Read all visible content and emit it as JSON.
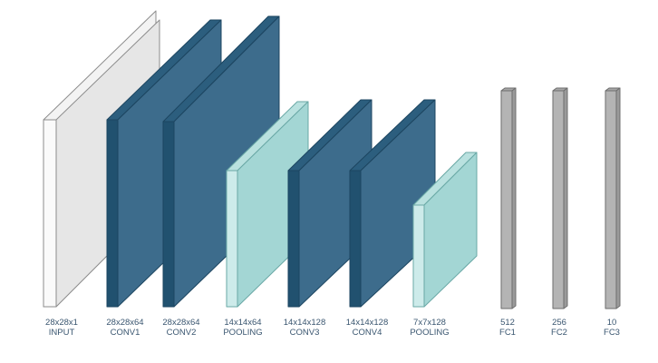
{
  "layers": [
    {
      "dims": "28x28x1",
      "name": "INPUT",
      "kind": "input"
    },
    {
      "dims": "28x28x64",
      "name": "CONV1",
      "kind": "conv"
    },
    {
      "dims": "28x28x64",
      "name": "CONV2",
      "kind": "conv"
    },
    {
      "dims": "14x14x64",
      "name": "POOLING",
      "kind": "pool"
    },
    {
      "dims": "14x14x128",
      "name": "CONV3",
      "kind": "conv"
    },
    {
      "dims": "14x14x128",
      "name": "CONV4",
      "kind": "conv"
    },
    {
      "dims": "7x7x128",
      "name": "POOLING",
      "kind": "pool"
    },
    {
      "dims": "512",
      "name": "FC1",
      "kind": "fc"
    },
    {
      "dims": "256",
      "name": "FC2",
      "kind": "fc"
    },
    {
      "dims": "10",
      "name": "FC3",
      "kind": "fc"
    }
  ],
  "colors": {
    "input": {
      "front": "#e6e6e6",
      "side": "#fafafa",
      "top": "#f3f3f3",
      "stroke": "#8c8c8c"
    },
    "conv": {
      "front": "#3d6c8c",
      "side": "#21516f",
      "top": "#2c5e7e",
      "stroke": "#1c4560"
    },
    "pool": {
      "front": "#a3d6d4",
      "side": "#cdebea",
      "top": "#b9e1df",
      "stroke": "#6aa8a6"
    },
    "fc": {
      "front": "#b4b4b4",
      "side": "#9a9a9a",
      "top": "#a6a6a6",
      "stroke": "#6e6e6e"
    },
    "label": "#3a5670"
  }
}
